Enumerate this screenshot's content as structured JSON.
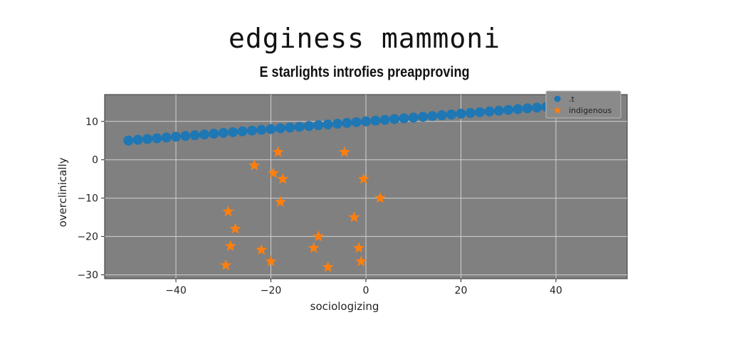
{
  "title": "edginess mammoni",
  "subtitle": "E starlights introfies preapproving",
  "chart_data": {
    "type": "scatter",
    "xlabel": "sociologizing",
    "ylabel": "overclinically",
    "xlim": [
      -55,
      55
    ],
    "ylim": [
      -31,
      17
    ],
    "xticks": [
      -40,
      -20,
      0,
      20,
      40
    ],
    "yticks": [
      10,
      0,
      -10,
      -20,
      -30
    ],
    "xtick_labels": [
      "−40",
      "−20",
      "0",
      "20",
      "40"
    ],
    "ytick_labels": [
      "10",
      "0",
      "−10",
      "−20",
      "−30"
    ],
    "grid": true,
    "legend": "top-right",
    "background": "#808080",
    "series": [
      {
        "name": ".t",
        "marker": "circle",
        "color": "#1f77b4",
        "x": [
          -50,
          -48,
          -46,
          -44,
          -42,
          -40,
          -38,
          -36,
          -34,
          -32,
          -30,
          -28,
          -26,
          -24,
          -22,
          -20,
          -18,
          -16,
          -14,
          -12,
          -10,
          -8,
          -6,
          -4,
          -2,
          0,
          2,
          4,
          6,
          8,
          10,
          12,
          14,
          16,
          18,
          20,
          22,
          24,
          26,
          28,
          30,
          32,
          34,
          36,
          38,
          40,
          42,
          44,
          46,
          48,
          50
        ],
        "y": [
          5.0,
          5.2,
          5.4,
          5.6,
          5.8,
          6.0,
          6.2,
          6.4,
          6.6,
          6.8,
          7.0,
          7.2,
          7.4,
          7.6,
          7.8,
          8.0,
          8.2,
          8.4,
          8.6,
          8.8,
          9.0,
          9.2,
          9.4,
          9.6,
          9.8,
          10.0,
          10.2,
          10.4,
          10.6,
          10.8,
          11.0,
          11.2,
          11.4,
          11.6,
          11.8,
          12.0,
          12.2,
          12.4,
          12.6,
          12.8,
          13.0,
          13.2,
          13.4,
          13.6,
          13.8,
          14.0,
          14.2,
          14.4,
          14.6,
          14.8,
          15.0
        ]
      },
      {
        "name": "indigenous",
        "marker": "star",
        "color": "#ff7f0e",
        "x": [
          -29,
          -28.5,
          -27.5,
          -29.5,
          -23.5,
          -22,
          -20,
          -19.5,
          -18.5,
          -18,
          -17.5,
          -11,
          -10,
          -8,
          -4.5,
          -2.5,
          -1.5,
          -1,
          -0.5,
          3
        ],
        "y": [
          -13.5,
          -22.5,
          -18,
          -27.5,
          -1.5,
          -23.5,
          -26.5,
          -3.5,
          2,
          -11,
          -5,
          -23,
          -20,
          -28,
          2,
          -15,
          -23,
          -26.5,
          -5,
          -10
        ]
      }
    ]
  }
}
